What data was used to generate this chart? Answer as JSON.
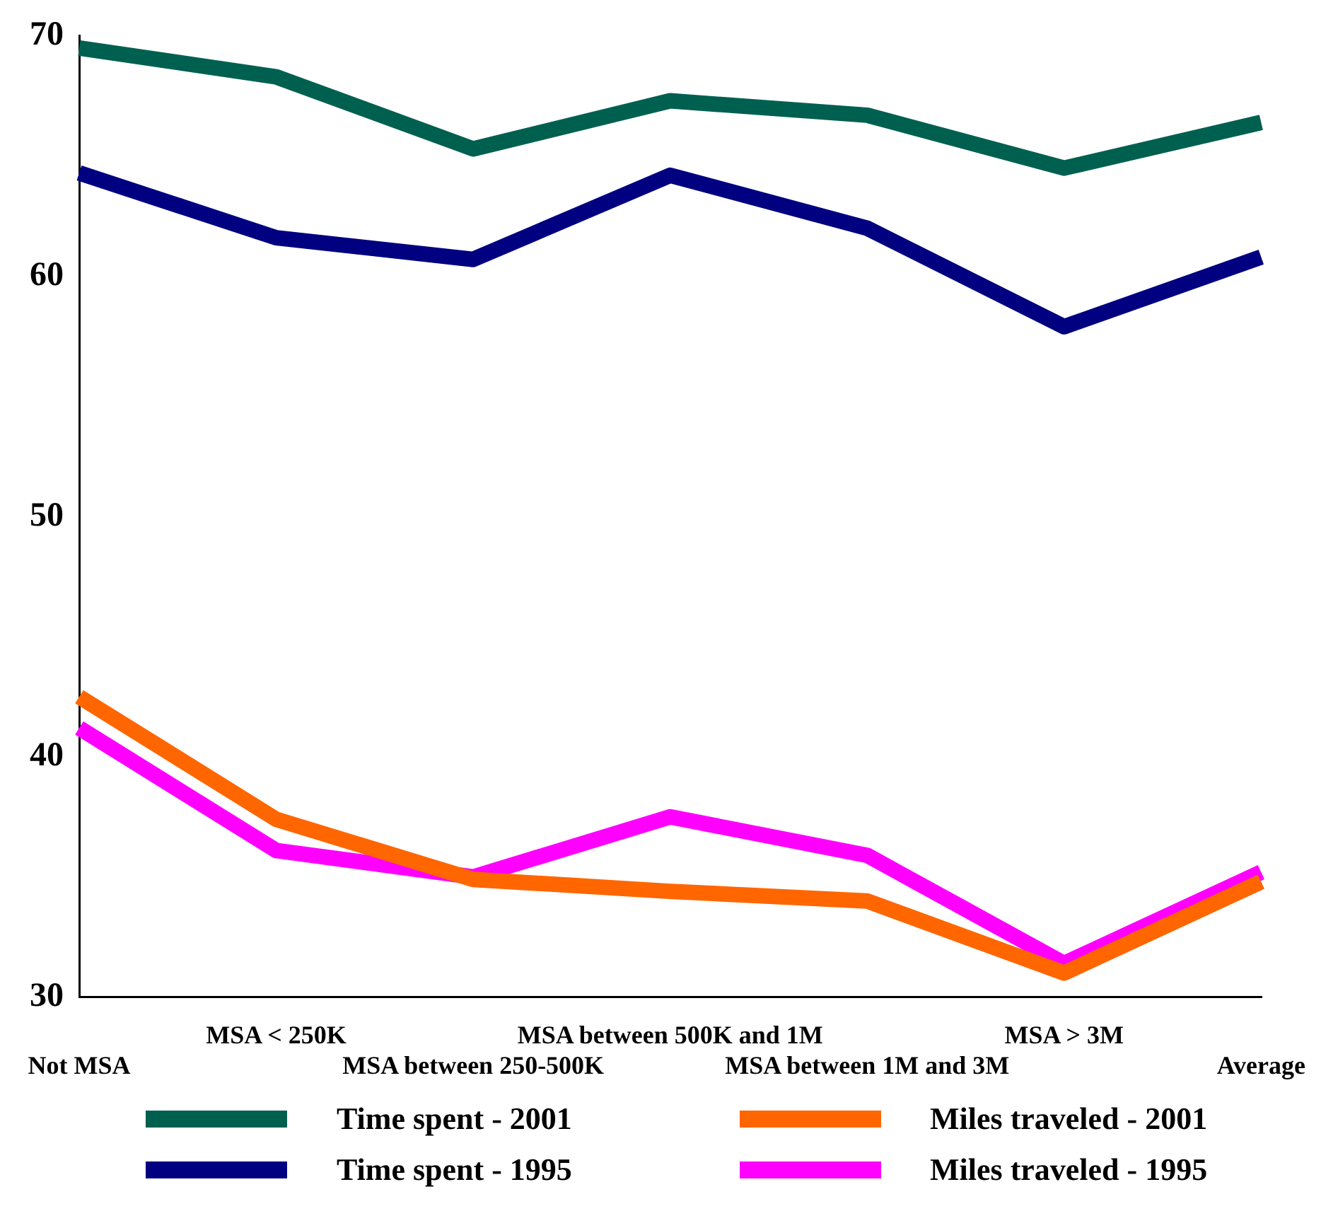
{
  "chart_data": {
    "type": "line",
    "categories": [
      "Not MSA",
      "MSA < 250K",
      "MSA between 250-500K",
      "MSA between 500K and 1M",
      "MSA between 1M and 3M",
      "MSA > 3M",
      "Average"
    ],
    "series": [
      {
        "name": "Time spent - 2001",
        "color": "#006050",
        "values": [
          69.5,
          68.3,
          65.3,
          67.3,
          66.7,
          64.5,
          66.4
        ]
      },
      {
        "name": "Time spent - 1995",
        "color": "#000080",
        "values": [
          64.3,
          61.6,
          60.7,
          64.2,
          62.0,
          57.9,
          60.8
        ]
      },
      {
        "name": "Miles traveled - 2001",
        "color": "#ff6600",
        "values": [
          42.5,
          37.4,
          34.9,
          34.4,
          34.0,
          31.0,
          34.8
        ]
      },
      {
        "name": "Miles traveled - 1995",
        "color": "#ff00ff",
        "values": [
          41.2,
          36.1,
          35.0,
          37.5,
          35.9,
          31.4,
          35.2
        ]
      }
    ],
    "ylim": [
      30,
      70
    ],
    "yticks": [
      30,
      40,
      50,
      60,
      70
    ],
    "grid": false,
    "legend": "bottom",
    "marker": "none",
    "line_style": "solid"
  }
}
